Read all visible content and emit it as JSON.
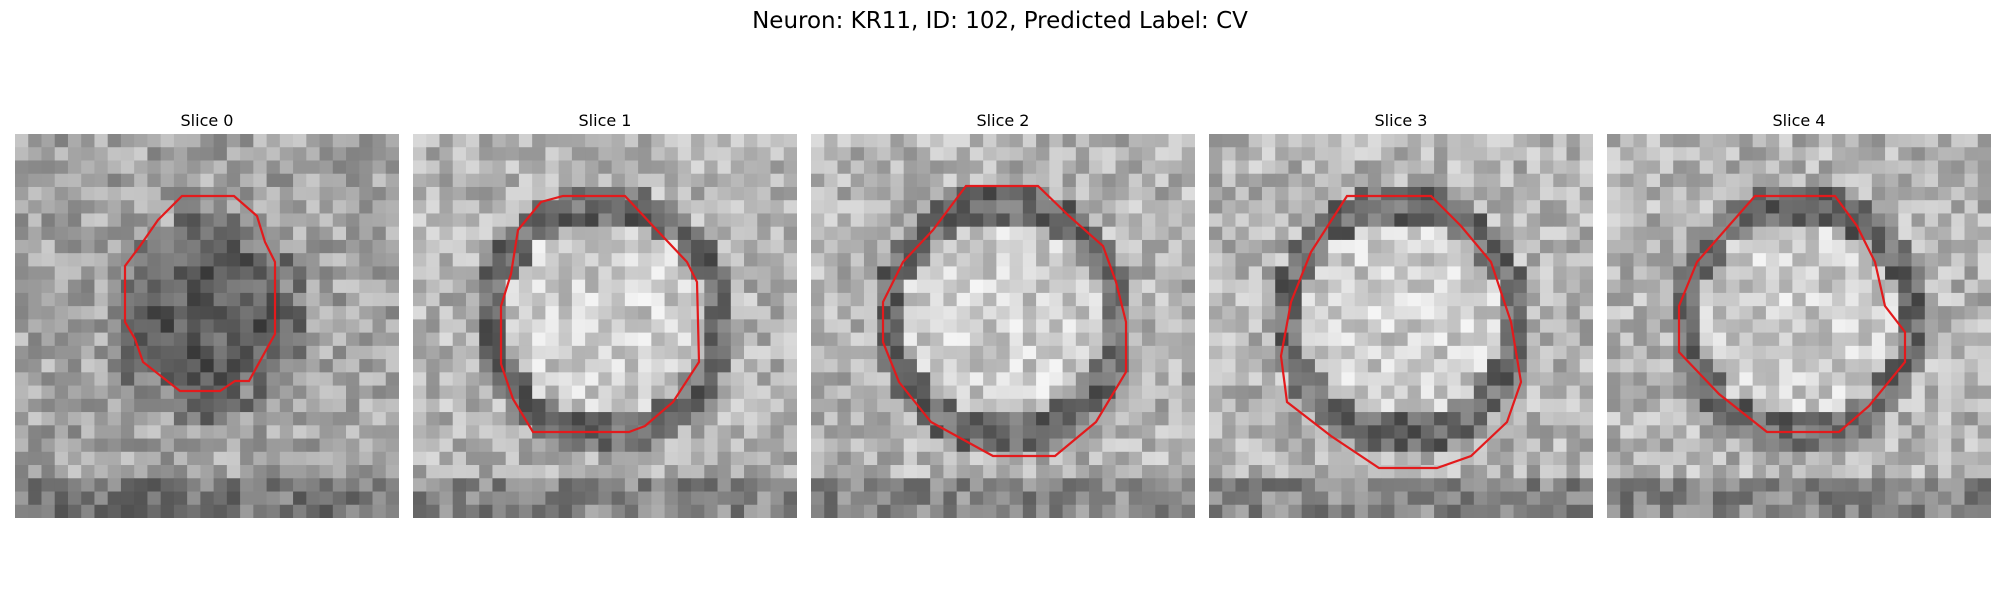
{
  "figure": {
    "title": "Neuron: KR11, ID: 102, Predicted Label: CV",
    "contour_color": "#e31a1c"
  },
  "panels": [
    {
      "title": "Slice 0",
      "tone": "dark"
    },
    {
      "title": "Slice 1",
      "tone": "light"
    },
    {
      "title": "Slice 2",
      "tone": "light"
    },
    {
      "title": "Slice 3",
      "tone": "light"
    },
    {
      "title": "Slice 4",
      "tone": "light"
    }
  ]
}
